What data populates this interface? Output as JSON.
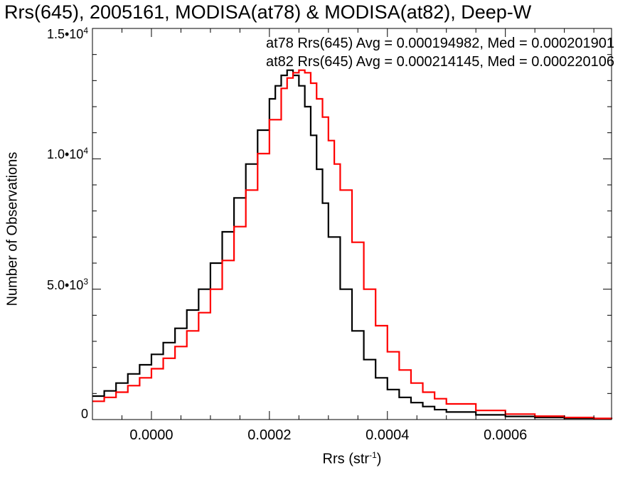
{
  "chart_data": {
    "type": "line",
    "title": "Rrs(645), 2005161, MODISA(at78) & MODISA(at82), Deep-W",
    "xlabel_base": "Rrs (str",
    "xlabel_sup": "-1",
    "xlabel_end": ")",
    "ylabel": "Number of Observations",
    "xlim": [
      -0.0001,
      0.00078
    ],
    "ylim": [
      0,
      15000
    ],
    "x_ticks": [
      {
        "value": 0.0,
        "label": "0.0000"
      },
      {
        "value": 0.0002,
        "label": "0.0002"
      },
      {
        "value": 0.0004,
        "label": "0.0004"
      },
      {
        "value": 0.0006,
        "label": "0.0006"
      }
    ],
    "y_ticks": [
      {
        "value": 0,
        "label": "0",
        "sup": ""
      },
      {
        "value": 5000,
        "label": "5.0•10",
        "sup": "3"
      },
      {
        "value": 10000,
        "label": "1.0•10",
        "sup": "4"
      },
      {
        "value": 15000,
        "label": "1.5•10",
        "sup": "4"
      }
    ],
    "legend": [
      {
        "text": "at78 Rrs(645) Avg = 0.000194982, Med = 0.000201901",
        "color": "#000000"
      },
      {
        "text": "at82 Rrs(645) Avg = 0.000214145, Med = 0.000220106",
        "color": "#ff0000"
      }
    ],
    "legend_placement": "top-right",
    "series": [
      {
        "color": "#000000",
        "x": [
          -0.0001,
          -8e-05,
          -6e-05,
          -4e-05,
          -2e-05,
          0.0,
          2e-05,
          4e-05,
          6e-05,
          8e-05,
          0.0001,
          0.00012,
          0.00014,
          0.00016,
          0.00018,
          0.0002,
          0.00021,
          0.00022,
          0.00023,
          0.00024,
          0.00025,
          0.00026,
          0.00027,
          0.00028,
          0.00029,
          0.0003,
          0.00032,
          0.00034,
          0.00036,
          0.00038,
          0.0004,
          0.00042,
          0.00044,
          0.00046,
          0.00048,
          0.0005,
          0.00055,
          0.0006,
          0.00065,
          0.0007,
          0.00075,
          0.00078
        ],
        "y": [
          900,
          1100,
          1400,
          1750,
          2100,
          2500,
          2950,
          3500,
          4200,
          5000,
          6000,
          7200,
          8500,
          9800,
          11100,
          12300,
          12800,
          13200,
          13400,
          13200,
          12800,
          12000,
          10900,
          9600,
          8300,
          7000,
          5000,
          3400,
          2300,
          1600,
          1150,
          850,
          650,
          500,
          380,
          290,
          180,
          120,
          80,
          50,
          30,
          20
        ]
      },
      {
        "color": "#ff0000",
        "x": [
          -0.0001,
          -8e-05,
          -6e-05,
          -4e-05,
          -2e-05,
          0.0,
          2e-05,
          4e-05,
          6e-05,
          8e-05,
          0.0001,
          0.00012,
          0.00014,
          0.00016,
          0.00018,
          0.0002,
          0.00022,
          0.00023,
          0.00024,
          0.00025,
          0.00026,
          0.00027,
          0.00028,
          0.00029,
          0.0003,
          0.00031,
          0.00032,
          0.00034,
          0.00036,
          0.00038,
          0.0004,
          0.00042,
          0.00044,
          0.00046,
          0.00048,
          0.0005,
          0.00055,
          0.0006,
          0.00065,
          0.0007,
          0.00075,
          0.00078
        ],
        "y": [
          700,
          850,
          1050,
          1300,
          1600,
          1950,
          2350,
          2800,
          3400,
          4100,
          5000,
          6100,
          7400,
          8800,
          10200,
          11500,
          12700,
          13100,
          13300,
          13400,
          13300,
          12900,
          12300,
          11600,
          10700,
          9800,
          8800,
          6800,
          5000,
          3600,
          2600,
          1900,
          1400,
          1050,
          800,
          600,
          350,
          210,
          130,
          80,
          45,
          30
        ]
      }
    ]
  }
}
